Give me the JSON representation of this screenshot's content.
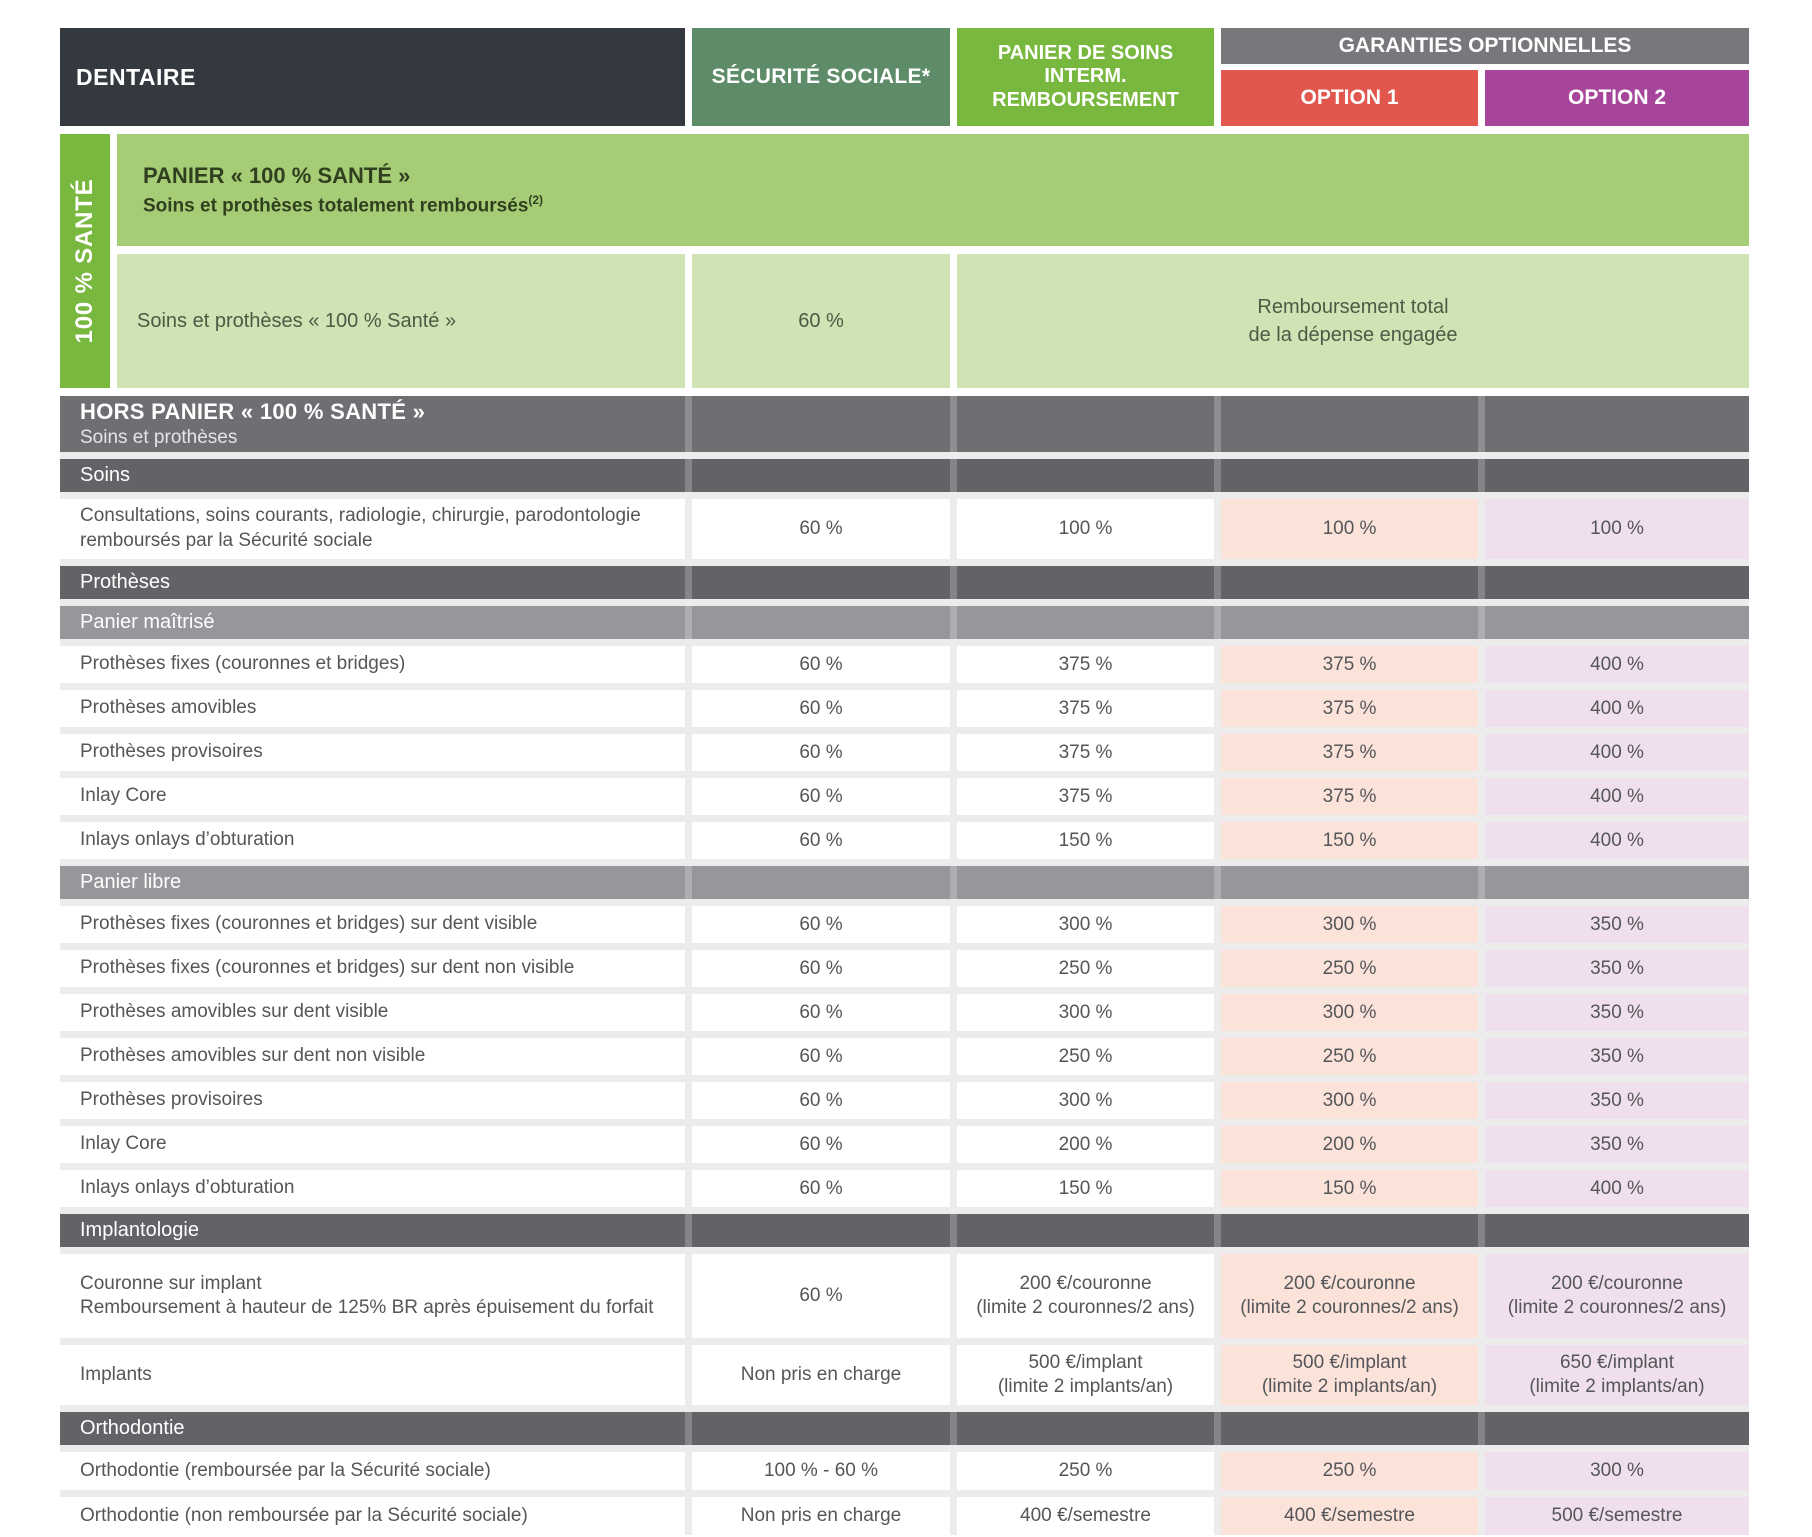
{
  "colors": {
    "header_dark": "#343940",
    "secu_green": "#5e8c68",
    "bright_green": "#79b83f",
    "garanties_gray": "#77787b",
    "option1_red": "#e2574d",
    "option2_purple": "#a7459b",
    "sante_banner_green": "#a6cd76",
    "sante_cell_green": "#cfe3b4",
    "banner_gray_dark": "#6e6f73",
    "banner_gray_mid": "#626367",
    "banner_gray_light": "#96979b",
    "option1_cell_pink": "#fbe3da",
    "option2_cell_lilac": "#f0e0ed",
    "text_gray": "#55565a"
  },
  "header": {
    "dentaire": "DENTAIRE",
    "secu": "SÉCURITÉ SOCIALE*",
    "interm": "PANIER DE SOINS\nINTERM.\nREMBOURSEMENT",
    "garanties": "GARANTIES OPTIONNELLES",
    "option1": "OPTION 1",
    "option2": "OPTION 2"
  },
  "sante": {
    "vertical_label": "100 % SANTÉ",
    "banner_title": "PANIER « 100 % SANTÉ »",
    "banner_subtitle": "Soins et prothèses totalement remboursés",
    "banner_sup": "(2)",
    "row_label": "Soins et prothèses « 100 % Santé »",
    "row_ss": "60 %",
    "row_merged": "Remboursement total\nde la dépense engagée"
  },
  "hors_panier": {
    "title": "HORS PANIER « 100 % SANTÉ »",
    "subtitle": "Soins et prothèses"
  },
  "soins": {
    "banner": "Soins",
    "row": {
      "label": "Consultations, soins courants, radiologie, chirurgie, parodontologie remboursés par la Sécurité sociale",
      "ss": "60 %",
      "interm": "100 %",
      "opt1": "100 %",
      "opt2": "100 %"
    }
  },
  "protheses": {
    "banner": "Prothèses",
    "maitrise": {
      "banner": "Panier maîtrisé",
      "rows": [
        {
          "label": "Prothèses fixes (couronnes et bridges)",
          "ss": "60 %",
          "interm": "375 %",
          "opt1": "375 %",
          "opt2": "400 %"
        },
        {
          "label": "Prothèses amovibles",
          "ss": "60 %",
          "interm": "375 %",
          "opt1": "375 %",
          "opt2": "400 %"
        },
        {
          "label": "Prothèses provisoires",
          "ss": "60 %",
          "interm": "375 %",
          "opt1": "375 %",
          "opt2": "400 %"
        },
        {
          "label": "Inlay Core",
          "ss": "60 %",
          "interm": "375 %",
          "opt1": "375 %",
          "opt2": "400 %"
        },
        {
          "label": "Inlays onlays d’obturation",
          "ss": "60 %",
          "interm": "150 %",
          "opt1": "150 %",
          "opt2": "400 %"
        }
      ]
    },
    "libre": {
      "banner": "Panier libre",
      "rows": [
        {
          "label": "Prothèses fixes (couronnes et bridges) sur dent visible",
          "ss": "60 %",
          "interm": "300 %",
          "opt1": "300 %",
          "opt2": "350 %"
        },
        {
          "label": "Prothèses fixes (couronnes et bridges) sur dent non visible",
          "ss": "60 %",
          "interm": "250 %",
          "opt1": "250 %",
          "opt2": "350 %"
        },
        {
          "label": "Prothèses amovibles sur dent visible",
          "ss": "60 %",
          "interm": "300 %",
          "opt1": "300 %",
          "opt2": "350 %"
        },
        {
          "label": "Prothèses amovibles sur dent non visible",
          "ss": "60 %",
          "interm": "250 %",
          "opt1": "250 %",
          "opt2": "350 %"
        },
        {
          "label": "Prothèses provisoires",
          "ss": "60 %",
          "interm": "300 %",
          "opt1": "300 %",
          "opt2": "350 %"
        },
        {
          "label": "Inlay Core",
          "ss": "60 %",
          "interm": "200 %",
          "opt1": "200 %",
          "opt2": "350 %"
        },
        {
          "label": "Inlays onlays d’obturation",
          "ss": "60 %",
          "interm": "150 %",
          "opt1": "150 %",
          "opt2": "400 %"
        }
      ]
    }
  },
  "implantologie": {
    "banner": "Implantologie",
    "rows": [
      {
        "label": "Couronne sur implant",
        "note": "Remboursement à hauteur de 125% BR après épuisement du forfait",
        "ss": "60 %",
        "interm_v": "200 €/couronne",
        "interm_n": "(limite 2 couronnes/2 ans)",
        "opt1_v": "200 €/couronne",
        "opt1_n": "(limite 2 couronnes/2 ans)",
        "opt2_v": "200 €/couronne",
        "opt2_n": "(limite 2 couronnes/2 ans)"
      },
      {
        "label": "Implants",
        "ss": "Non pris en charge",
        "interm_v": "500 €/implant",
        "interm_n": "(limite 2 implants/an)",
        "opt1_v": "500 €/implant",
        "opt1_n": "(limite 2 implants/an)",
        "opt2_v": "650 €/implant",
        "opt2_n": "(limite 2 implants/an)"
      }
    ]
  },
  "orthodontie": {
    "banner": "Orthodontie",
    "rows": [
      {
        "label": "Orthodontie (remboursée par la Sécurité sociale)",
        "ss": "100 % - 60 %",
        "interm": "250 %",
        "opt1": "250 %",
        "opt2": "300 %"
      },
      {
        "label": "Orthodontie (non remboursée par la Sécurité sociale)",
        "ss": "Non pris en charge",
        "interm": "400 €/semestre",
        "opt1": "400 €/semestre",
        "opt2": "500 €/semestre"
      }
    ]
  }
}
